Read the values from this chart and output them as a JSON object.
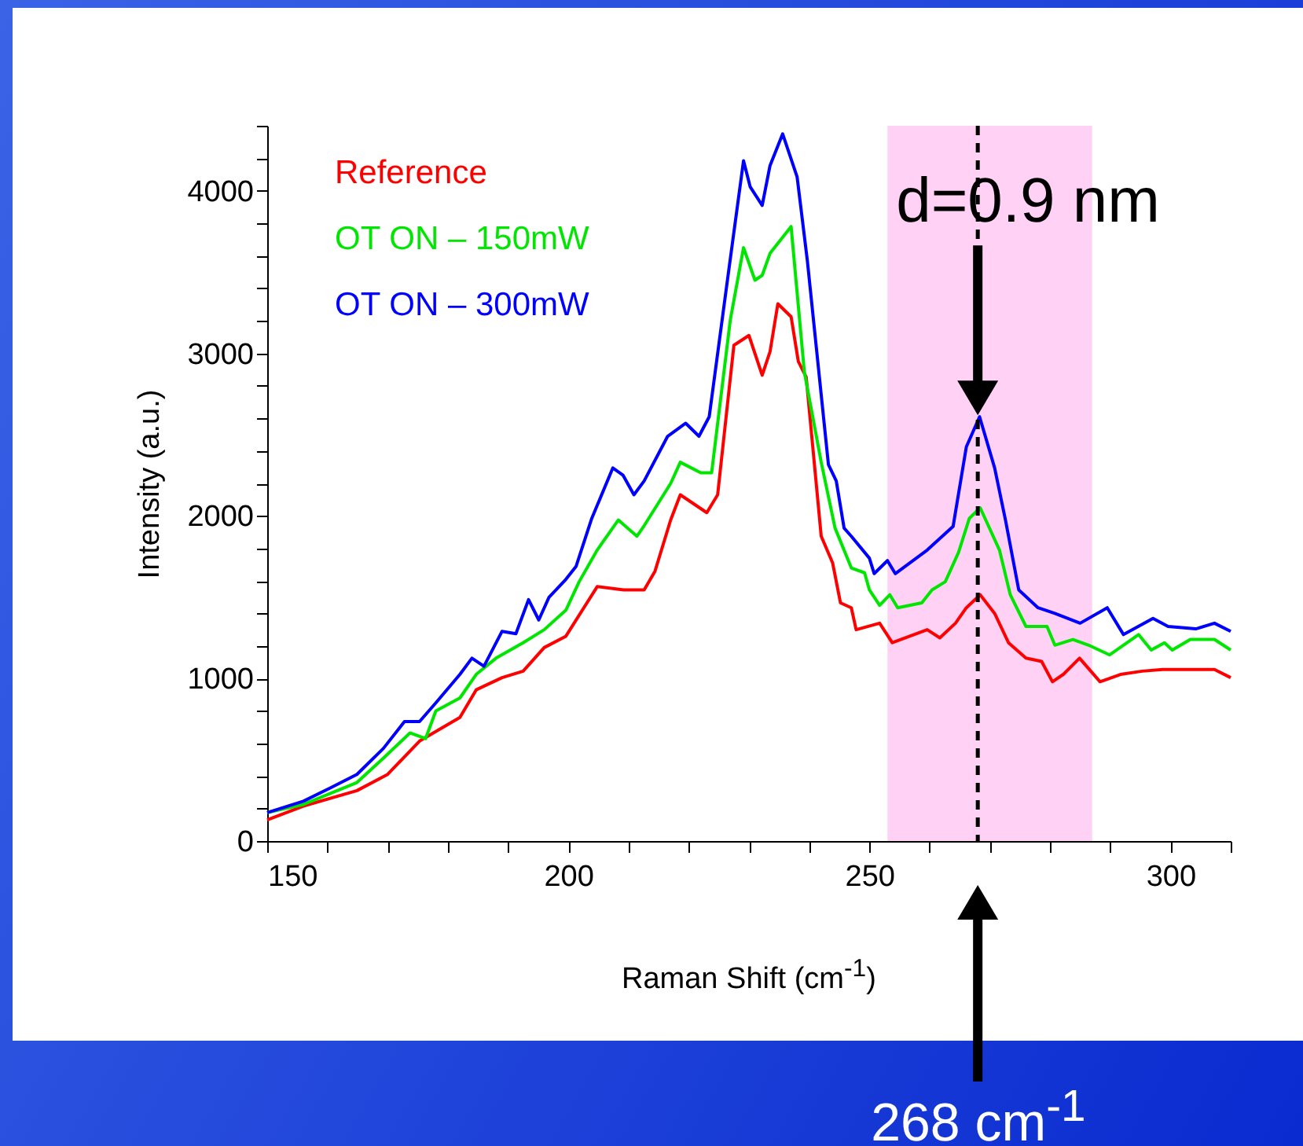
{
  "chart_data": {
    "type": "line",
    "xlabel": "Raman Shift (cm$^{-1}$)",
    "ylabel": "Intensity (a.u.)",
    "xlim": [
      150,
      310
    ],
    "ylim": [
      0,
      4400
    ],
    "xticks": [
      150,
      {
        "value": 160,
        "label": null
      },
      {
        "value": 170,
        "label": null
      },
      {
        "value": 180,
        "label": null
      },
      {
        "value": 190,
        "label": null
      },
      200,
      {
        "value": 210,
        "label": null
      },
      {
        "value": 220,
        "label": null
      },
      {
        "value": 230,
        "label": null
      },
      {
        "value": 240,
        "label": null
      },
      250,
      {
        "value": 260,
        "label": null
      },
      {
        "value": 270,
        "label": null
      },
      {
        "value": 280,
        "label": null
      },
      {
        "value": 290,
        "label": null
      },
      300,
      {
        "value": 310,
        "label": null
      }
    ],
    "yticks": [
      0,
      {
        "value": 200,
        "label": null
      },
      {
        "value": 400,
        "label": null
      },
      {
        "value": 600,
        "label": null
      },
      {
        "value": 800,
        "label": null
      },
      1000,
      {
        "value": 1200,
        "label": null
      },
      {
        "value": 1400,
        "label": null
      },
      {
        "value": 1600,
        "label": null
      },
      {
        "value": 1800,
        "label": null
      },
      2000,
      {
        "value": 2200,
        "label": null
      },
      {
        "value": 2400,
        "label": null
      },
      {
        "value": 2600,
        "label": null
      },
      {
        "value": 2800,
        "label": null
      },
      3000,
      {
        "value": 3200,
        "label": null
      },
      {
        "value": 3400,
        "label": null
      },
      {
        "value": 3600,
        "label": null
      },
      {
        "value": 3800,
        "label": null
      },
      4000,
      {
        "value": 4200,
        "label": null
      },
      {
        "value": 4400,
        "label": null
      }
    ],
    "grid": false,
    "legend": "top left",
    "marker": "none",
    "line_style": "solid",
    "series": [
      {
        "name": "Reference",
        "color": "#ff0000",
        "x": [
          150,
          156,
          164.9,
          170,
          175.3,
          182,
          184.7,
          189,
          192.5,
          196,
          199.6,
          204.8,
          209.2,
          212.6,
          214.4,
          217,
          218.6,
          223,
          224.8,
          227.5,
          230,
          232.2,
          233.5,
          234.8,
          237,
          238.2,
          239.5,
          242,
          243.9,
          245.2,
          247,
          247.8,
          251.7,
          253.8,
          259.6,
          261.7,
          264.3,
          266.1,
          268.4,
          270.8,
          273.1,
          276,
          278.6,
          280.4,
          282.2,
          284.9,
          288.3,
          291.7,
          295.3,
          298.7,
          307.3,
          310
        ],
        "values": [
          130,
          215,
          310,
          410,
          615,
          760,
          930,
          1005,
          1045,
          1190,
          1260,
          1565,
          1545,
          1545,
          1660,
          1975,
          2130,
          2020,
          2130,
          3050,
          3110,
          2865,
          3010,
          3305,
          3225,
          2950,
          2855,
          1875,
          1710,
          1465,
          1435,
          1300,
          1340,
          1220,
          1300,
          1250,
          1340,
          1435,
          1515,
          1400,
          1220,
          1125,
          1105,
          980,
          1025,
          1125,
          980,
          1025,
          1045,
          1055,
          1055,
          1005
        ]
      },
      {
        "name": "OT ON – 150mW",
        "color": "#00e600",
        "x": [
          150,
          156,
          164.9,
          169.3,
          173.7,
          176.3,
          178,
          182,
          184.7,
          188,
          192.5,
          196,
          199.6,
          201.8,
          204.8,
          208.3,
          211.4,
          212.6,
          217,
          218.6,
          222,
          223.8,
          226.9,
          229.1,
          231,
          232.2,
          233.5,
          237,
          239.2,
          242,
          244.3,
          247,
          249.2,
          250,
          251.7,
          253.4,
          254.7,
          258.7,
          260.4,
          262.6,
          264.8,
          266.6,
          268.4,
          271.6,
          273.4,
          276,
          279.5,
          280.8,
          283.8,
          286.4,
          289.9,
          294.7,
          296.8,
          299,
          300.3,
          303.3,
          307.3,
          310
        ],
        "values": [
          175,
          225,
          360,
          510,
          665,
          630,
          800,
          880,
          1025,
          1125,
          1220,
          1300,
          1420,
          1595,
          1790,
          1975,
          1875,
          1940,
          2200,
          2330,
          2265,
          2265,
          3205,
          3650,
          3450,
          3480,
          3615,
          3780,
          2885,
          2330,
          1925,
          1680,
          1650,
          1545,
          1450,
          1515,
          1435,
          1465,
          1545,
          1595,
          1775,
          1985,
          2050,
          1790,
          1515,
          1320,
          1320,
          1205,
          1240,
          1205,
          1145,
          1270,
          1175,
          1220,
          1175,
          1240,
          1240,
          1175
        ]
      },
      {
        "name": "OT ON – 300mW",
        "color": "#0000ff",
        "x": [
          150,
          156,
          160.4,
          164.9,
          169.3,
          172.8,
          175.3,
          178,
          182,
          184,
          186,
          189,
          191.3,
          193.4,
          195.1,
          196.8,
          199.6,
          201.3,
          203.9,
          207.4,
          209.1,
          210.9,
          212.6,
          216.5,
          219.5,
          221.7,
          223.4,
          226.5,
          229.1,
          230.2,
          232.2,
          233.5,
          235.6,
          238,
          239.7,
          243.2,
          244.5,
          245.8,
          247,
          250,
          250.8,
          253,
          254.3,
          259.6,
          263.9,
          266.1,
          268.3,
          270.8,
          272.6,
          274.8,
          278,
          280.8,
          285,
          289.5,
          292.2,
          297.1,
          299.6,
          304.2,
          307.3,
          310
        ],
        "values": [
          175,
          245,
          325,
          410,
          570,
          735,
          735,
          850,
          1025,
          1125,
          1075,
          1290,
          1275,
          1485,
          1360,
          1500,
          1610,
          1690,
          1985,
          2295,
          2250,
          2130,
          2215,
          2490,
          2570,
          2490,
          2610,
          3470,
          4185,
          4025,
          3910,
          4155,
          4350,
          4085,
          3570,
          2315,
          2215,
          1925,
          1875,
          1740,
          1645,
          1725,
          1645,
          1790,
          1935,
          2425,
          2610,
          2295,
          1975,
          1545,
          1435,
          1400,
          1340,
          1435,
          1270,
          1370,
          1320,
          1305,
          1340,
          1290
        ]
      }
    ],
    "annotations": [
      {
        "text": "d=0.9 nm",
        "x": 268,
        "y": 2600
      },
      "268 cm$^{-1}$"
    ],
    "ref_lines": [
      {
        "axis": "x",
        "value": 268,
        "line_style": "dashed",
        "color": "#000000"
      }
    ],
    "bands": [
      {
        "axis": "x",
        "from": 253,
        "to": 287,
        "color": "#ff66dd"
      }
    ]
  }
}
